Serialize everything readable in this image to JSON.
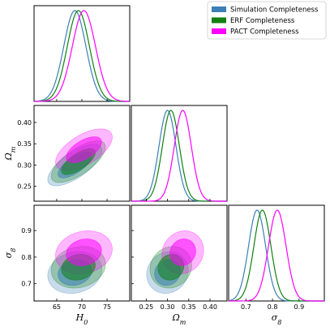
{
  "chart_data": {
    "type": "corner",
    "parameters": [
      {
        "name": "H0",
        "label": "H",
        "sub": "0",
        "range": [
          60.5,
          79.5
        ],
        "ticks": [
          65,
          70,
          75
        ]
      },
      {
        "name": "Om",
        "label": "Ω",
        "sub": "m",
        "range": [
          0.215,
          0.44
        ],
        "ticks": [
          0.25,
          0.3,
          0.35,
          0.4
        ],
        "tick_labels": [
          "0.25",
          "0.30",
          "0.35",
          "0.40"
        ]
      },
      {
        "name": "s8",
        "label": "σ",
        "sub": "8",
        "range": [
          0.635,
          0.995
        ],
        "ticks": [
          0.7,
          0.8,
          0.9
        ]
      }
    ],
    "legend": {
      "placement": "top-right",
      "entries": [
        {
          "name": "Simulation Completeness",
          "color": "#3b7fb6"
        },
        {
          "name": "ERF Completeness",
          "color": "#118011"
        },
        {
          "name": "PACT Completeness",
          "color": "#ff00ff"
        }
      ]
    },
    "series": [
      {
        "name": "Simulation Completeness",
        "color": "#3b7fb6",
        "mean": {
          "H0": 68.6,
          "Om": 0.3,
          "s8": 0.742
        },
        "sigma": {
          "H0": 2.2,
          "Om": 0.02,
          "s8": 0.032
        },
        "corr": {
          "H0_Om": 0.7,
          "H0_s8": 0.15,
          "Om_s8": 0.1
        }
      },
      {
        "name": "ERF Completeness",
        "color": "#118011",
        "mean": {
          "H0": 69.3,
          "Om": 0.308,
          "s8": 0.762
        },
        "sigma": {
          "H0": 2.2,
          "Om": 0.02,
          "s8": 0.032
        },
        "corr": {
          "H0_Om": 0.7,
          "H0_s8": 0.15,
          "Om_s8": 0.1
        }
      },
      {
        "name": "PACT Completeness",
        "color": "#ff00ff",
        "mean": {
          "H0": 70.4,
          "Om": 0.336,
          "s8": 0.818
        },
        "sigma": {
          "H0": 2.3,
          "Om": 0.02,
          "s8": 0.033
        },
        "corr": {
          "H0_Om": 0.6,
          "H0_s8": 0.15,
          "Om_s8": 0.1
        }
      }
    ]
  }
}
